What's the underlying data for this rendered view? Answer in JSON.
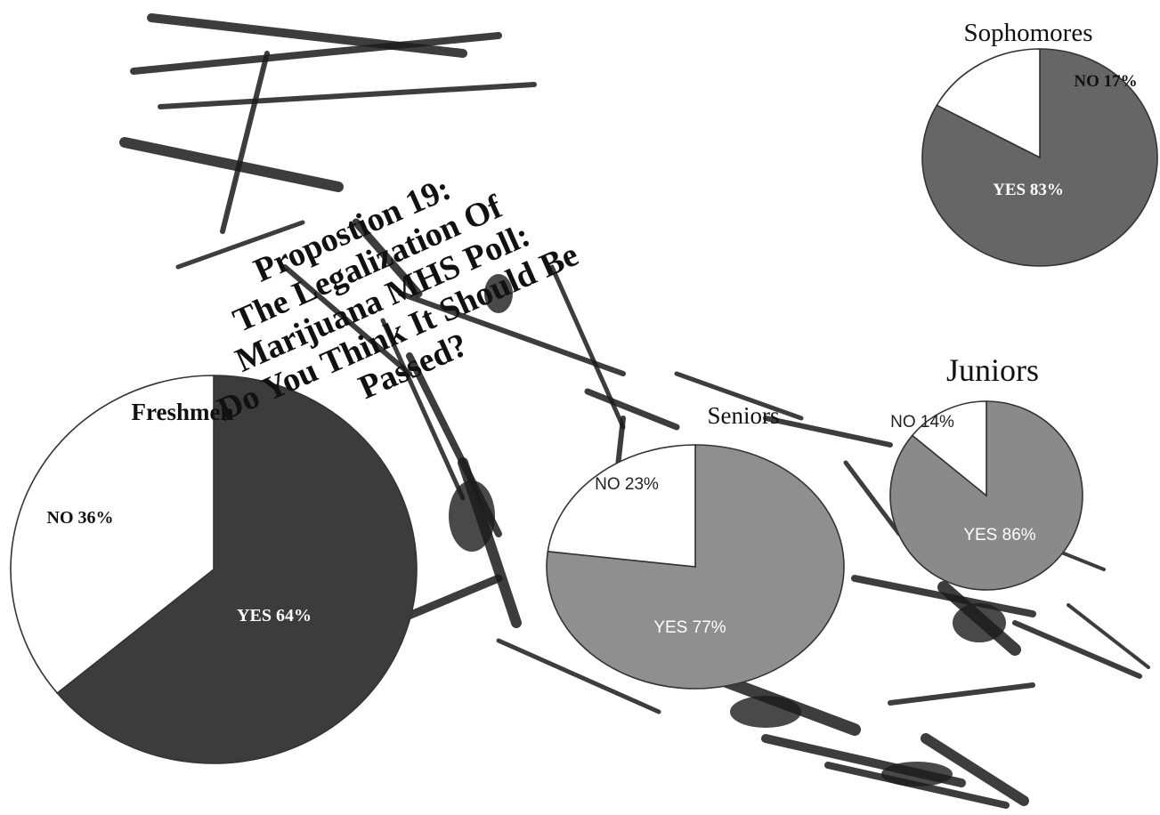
{
  "headline": {
    "lines": [
      "Propostion 19:",
      "The Legalization Of",
      "Marijuana MHS Poll:",
      "Do You Think It Should Be",
      "Passed?"
    ]
  },
  "chart_data": [
    {
      "type": "pie",
      "title": "Freshmen",
      "labels": [
        "YES",
        "NO"
      ],
      "values": [
        64,
        36
      ],
      "data_labels": [
        "YES 64%",
        "NO 36%"
      ],
      "colors": [
        "#3c3c3c",
        "#ffffff"
      ]
    },
    {
      "type": "pie",
      "title": "Sophomores",
      "labels": [
        "YES",
        "NO"
      ],
      "values": [
        83,
        17
      ],
      "data_labels": [
        "YES 83%",
        "NO 17%"
      ],
      "colors": [
        "#666666",
        "#ffffff"
      ]
    },
    {
      "type": "pie",
      "title": "Juniors",
      "labels": [
        "YES",
        "NO"
      ],
      "values": [
        86,
        14
      ],
      "data_labels": [
        "YES 86%",
        "NO 14%"
      ],
      "colors": [
        "#8a8a8a",
        "#ffffff"
      ]
    },
    {
      "type": "pie",
      "title": "Seniors",
      "labels": [
        "YES",
        "NO"
      ],
      "values": [
        77,
        23
      ],
      "data_labels": [
        "YES 77%",
        "NO 23%"
      ],
      "colors": [
        "#8f8f8f",
        "#ffffff"
      ]
    }
  ],
  "colors": {
    "background": "#ffffff",
    "outline": "#333333",
    "backdrop": "#1c1c1c"
  }
}
